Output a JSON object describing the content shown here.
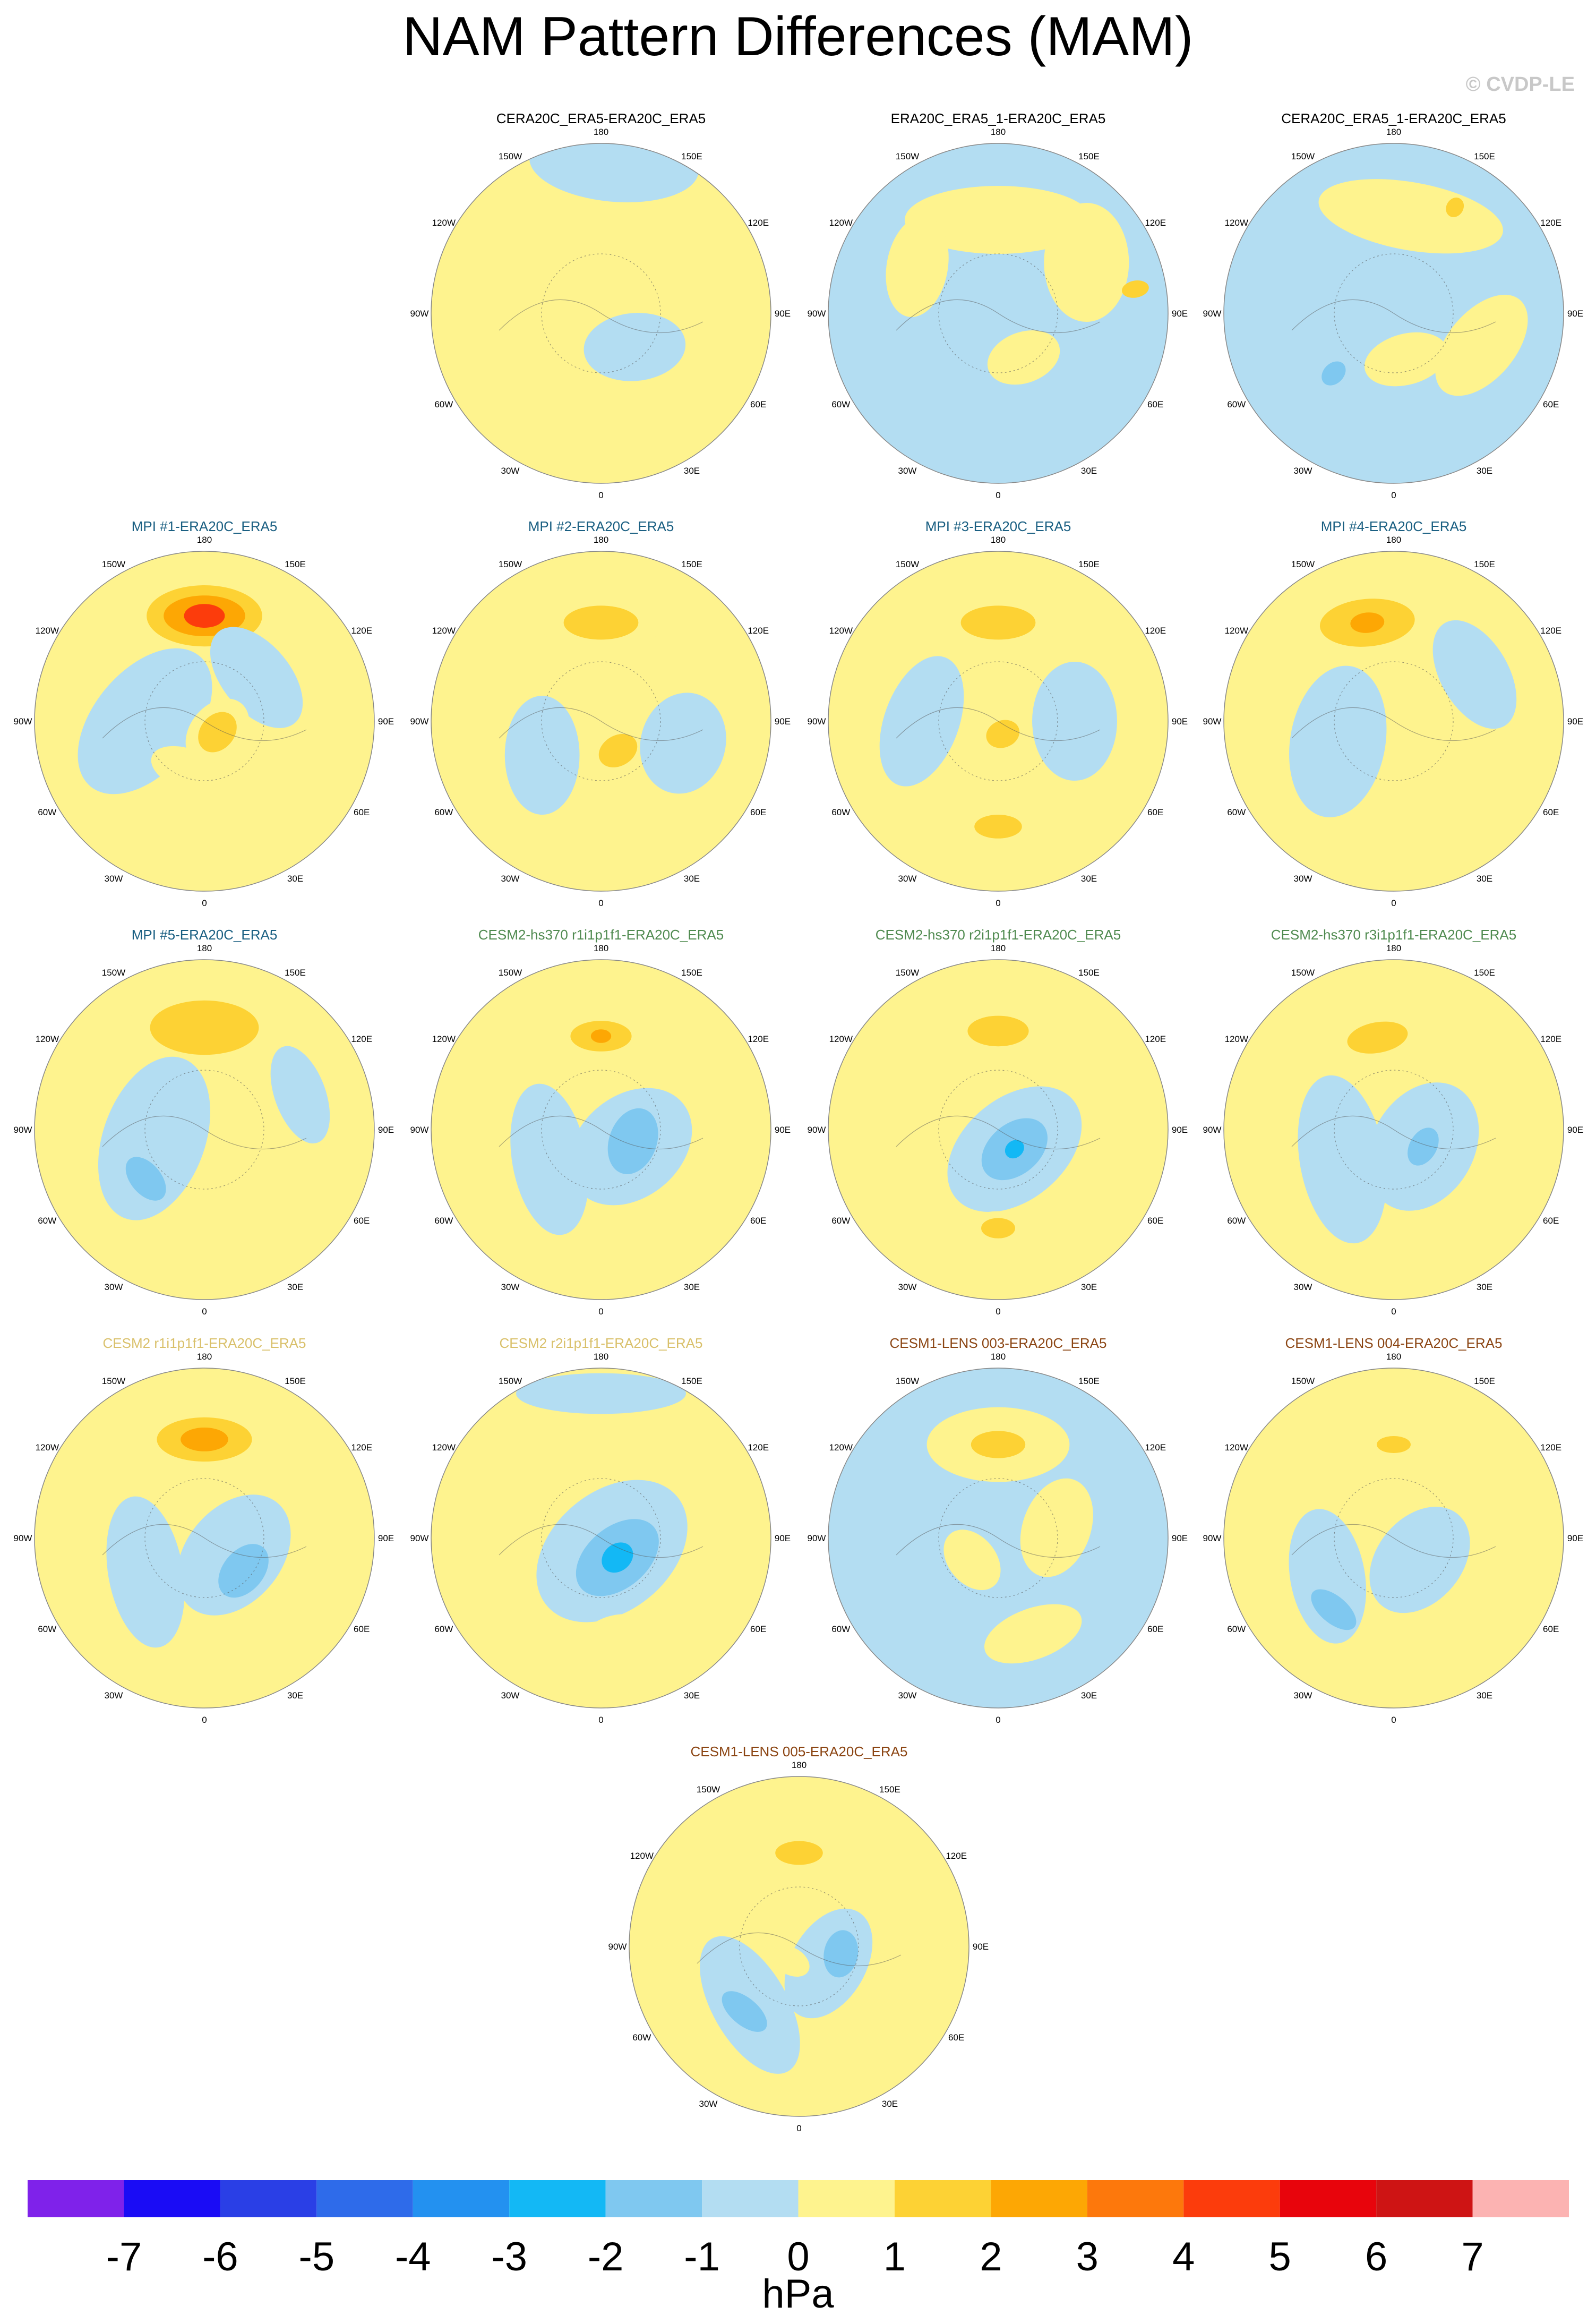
{
  "title": "NAM Pattern Differences (MAM)",
  "copyright": "© CVDP-LE",
  "chart_data": {
    "type": "heatmap",
    "description_type": "polar-stereographic contour maps",
    "units": "hPa",
    "colorbar": {
      "ticks": [
        "-7",
        "-6",
        "-5",
        "-4",
        "-3",
        "-2",
        "-1",
        "0",
        "1",
        "2",
        "3",
        "4",
        "5",
        "6",
        "7"
      ],
      "colors": [
        "#7f22ea",
        "#1a0cf5",
        "#2a3fe6",
        "#2e6bea",
        "#2391f0",
        "#13b8f5",
        "#7fc8f0",
        "#b3ddf2",
        "#fef38e",
        "#fdd234",
        "#fda704",
        "#fd780c",
        "#fc3c0c",
        "#e8040c",
        "#ce1414",
        "#fcb3b2"
      ],
      "unit_label": "hPa"
    },
    "longitude_labels": [
      "180",
      "150E",
      "120E",
      "90E",
      "60E",
      "30E",
      "0",
      "30W",
      "60W",
      "90W",
      "120W",
      "150W"
    ],
    "panels": [
      {
        "title": "CERA20C_ERA5-ERA20C_ERA5",
        "title_color": "#000000",
        "background": "#fef38e",
        "blobs": [
          {
            "lon": 175,
            "r": 0.88,
            "a": 0.5,
            "b": 0.22,
            "level": -1,
            "rot": 0
          },
          {
            "lon": 45,
            "r": 0.28,
            "a": 0.3,
            "b": 0.2,
            "level": -1,
            "rot": 40
          }
        ]
      },
      {
        "title": "ERA20C_ERA5_1-ERA20C_ERA5",
        "title_color": "#000000",
        "background": "#b3ddf2",
        "blobs": [
          {
            "lon": 180,
            "r": 0.55,
            "a": 0.55,
            "b": 0.2,
            "level": 1,
            "rot": 0
          },
          {
            "lon": 120,
            "r": 0.6,
            "a": 0.35,
            "b": 0.25,
            "level": 1,
            "rot": 30
          },
          {
            "lon": 240,
            "r": 0.55,
            "a": 0.3,
            "b": 0.18,
            "level": 1,
            "rot": -20
          },
          {
            "lon": 30,
            "r": 0.3,
            "a": 0.22,
            "b": 0.15,
            "level": 1,
            "rot": 10
          },
          {
            "lon": 100,
            "r": 0.82,
            "a": 0.05,
            "b": 0.08,
            "level": 2,
            "rot": 0
          }
        ]
      },
      {
        "title": "CERA20C_ERA5_1-ERA20C_ERA5",
        "title_color": "#000000",
        "background": "#b3ddf2",
        "blobs": [
          {
            "lon": 170,
            "r": 0.58,
            "a": 0.55,
            "b": 0.2,
            "level": 1,
            "rot": 0
          },
          {
            "lon": 70,
            "r": 0.55,
            "a": 0.35,
            "b": 0.2,
            "level": 1,
            "rot": 20
          },
          {
            "lon": 15,
            "r": 0.28,
            "a": 0.25,
            "b": 0.15,
            "level": 1,
            "rot": 0
          },
          {
            "lon": 150,
            "r": 0.72,
            "a": 0.05,
            "b": 0.06,
            "level": 2,
            "rot": 0
          },
          {
            "lon": 315,
            "r": 0.5,
            "a": 0.06,
            "b": 0.08,
            "level": -2,
            "rot": 0
          }
        ]
      },
      {
        "title": "MPI #1-ERA20C_ERA5",
        "title_color": "#1a5f82",
        "background": "#fef38e",
        "blobs": [
          {
            "lon": 180,
            "r": 0.62,
            "a": 0.45,
            "b": 0.25,
            "level": 1,
            "rot": 0
          },
          {
            "lon": 180,
            "r": 0.62,
            "a": 0.34,
            "b": 0.18,
            "level": 2,
            "rot": 0
          },
          {
            "lon": 180,
            "r": 0.62,
            "a": 0.24,
            "b": 0.12,
            "level": 3,
            "rot": 0
          },
          {
            "lon": 180,
            "r": 0.62,
            "a": 0.12,
            "b": 0.07,
            "level": 5,
            "rot": 0
          },
          {
            "lon": 270,
            "r": 0.35,
            "a": 0.5,
            "b": 0.3,
            "level": -1,
            "rot": 40
          },
          {
            "lon": 130,
            "r": 0.4,
            "a": 0.35,
            "b": 0.2,
            "level": -1,
            "rot": 0
          },
          {
            "lon": 50,
            "r": 0.1,
            "a": 0.22,
            "b": 0.16,
            "level": 1,
            "rot": 0
          },
          {
            "lon": 50,
            "r": 0.1,
            "a": 0.13,
            "b": 0.1,
            "level": 2,
            "rot": 0
          },
          {
            "lon": 340,
            "r": 0.3,
            "a": 0.22,
            "b": 0.12,
            "level": 1,
            "rot": 0
          }
        ]
      },
      {
        "title": "MPI #2-ERA20C_ERA5",
        "title_color": "#1a5f82",
        "background": "#fef38e",
        "blobs": [
          {
            "lon": 180,
            "r": 0.58,
            "a": 0.36,
            "b": 0.18,
            "level": 1,
            "rot": 0
          },
          {
            "lon": 180,
            "r": 0.58,
            "a": 0.22,
            "b": 0.1,
            "level": 2,
            "rot": 0
          },
          {
            "lon": 300,
            "r": 0.4,
            "a": 0.35,
            "b": 0.22,
            "level": -1,
            "rot": 30
          },
          {
            "lon": 75,
            "r": 0.5,
            "a": 0.3,
            "b": 0.25,
            "level": -1,
            "rot": 0
          },
          {
            "lon": 30,
            "r": 0.2,
            "a": 0.12,
            "b": 0.09,
            "level": 2,
            "rot": 0
          }
        ]
      },
      {
        "title": "MPI #3-ERA20C_ERA5",
        "title_color": "#1a5f82",
        "background": "#fef38e",
        "blobs": [
          {
            "lon": 180,
            "r": 0.58,
            "a": 0.36,
            "b": 0.18,
            "level": 1,
            "rot": 0
          },
          {
            "lon": 180,
            "r": 0.58,
            "a": 0.22,
            "b": 0.1,
            "level": 2,
            "rot": 0
          },
          {
            "lon": 90,
            "r": 0.45,
            "a": 0.35,
            "b": 0.25,
            "level": -1,
            "rot": 0
          },
          {
            "lon": 270,
            "r": 0.45,
            "a": 0.4,
            "b": 0.22,
            "level": -1,
            "rot": 20
          },
          {
            "lon": 20,
            "r": 0.08,
            "a": 0.18,
            "b": 0.14,
            "level": 1,
            "rot": 0
          },
          {
            "lon": 20,
            "r": 0.08,
            "a": 0.1,
            "b": 0.08,
            "level": 2,
            "rot": 0
          },
          {
            "lon": 0,
            "r": 0.62,
            "a": 0.24,
            "b": 0.12,
            "level": 1,
            "rot": 0
          },
          {
            "lon": 0,
            "r": 0.62,
            "a": 0.14,
            "b": 0.07,
            "level": 2,
            "rot": 0
          }
        ]
      },
      {
        "title": "MPI #4-ERA20C_ERA5",
        "title_color": "#1a5f82",
        "background": "#fef38e",
        "blobs": [
          {
            "lon": 195,
            "r": 0.6,
            "a": 0.4,
            "b": 0.22,
            "level": 1,
            "rot": 10
          },
          {
            "lon": 195,
            "r": 0.6,
            "a": 0.28,
            "b": 0.14,
            "level": 2,
            "rot": 10
          },
          {
            "lon": 195,
            "r": 0.6,
            "a": 0.1,
            "b": 0.06,
            "level": 3,
            "rot": 10
          },
          {
            "lon": 290,
            "r": 0.35,
            "a": 0.45,
            "b": 0.28,
            "level": -1,
            "rot": 30
          },
          {
            "lon": 120,
            "r": 0.55,
            "a": 0.35,
            "b": 0.2,
            "level": -1,
            "rot": 0
          },
          {
            "lon": 40,
            "r": 0.15,
            "a": 0.12,
            "b": 0.1,
            "level": 1,
            "rot": 0
          },
          {
            "lon": 350,
            "r": 0.55,
            "a": 0.12,
            "b": 0.07,
            "level": 1,
            "rot": 0
          }
        ]
      },
      {
        "title": "MPI #5-ERA20C_ERA5",
        "title_color": "#1a5f82",
        "background": "#fef38e",
        "blobs": [
          {
            "lon": 180,
            "r": 0.6,
            "a": 0.45,
            "b": 0.24,
            "level": 1,
            "rot": 0
          },
          {
            "lon": 180,
            "r": 0.6,
            "a": 0.32,
            "b": 0.16,
            "level": 2,
            "rot": 0
          },
          {
            "lon": 280,
            "r": 0.3,
            "a": 0.5,
            "b": 0.3,
            "level": -1,
            "rot": 30
          },
          {
            "lon": 310,
            "r": 0.45,
            "a": 0.15,
            "b": 0.09,
            "level": -2,
            "rot": 0
          },
          {
            "lon": 110,
            "r": 0.6,
            "a": 0.3,
            "b": 0.15,
            "level": -1,
            "rot": 0
          },
          {
            "lon": 20,
            "r": 0.35,
            "a": 0.12,
            "b": 0.1,
            "level": 1,
            "rot": 0
          }
        ]
      },
      {
        "title": "CESM2-hs370 r1i1p1f1-ERA20C_ERA5",
        "title_color": "#4f8a4f",
        "background": "#fef38e",
        "blobs": [
          {
            "lon": 180,
            "r": 0.55,
            "a": 0.3,
            "b": 0.16,
            "level": 1,
            "rot": 0
          },
          {
            "lon": 180,
            "r": 0.55,
            "a": 0.18,
            "b": 0.09,
            "level": 2,
            "rot": 0
          },
          {
            "lon": 180,
            "r": 0.55,
            "a": 0.06,
            "b": 0.04,
            "level": 3,
            "rot": 0
          },
          {
            "lon": 60,
            "r": 0.2,
            "a": 0.4,
            "b": 0.3,
            "level": -1,
            "rot": 20
          },
          {
            "lon": 70,
            "r": 0.2,
            "a": 0.2,
            "b": 0.14,
            "level": -2,
            "rot": 0
          },
          {
            "lon": 300,
            "r": 0.35,
            "a": 0.45,
            "b": 0.22,
            "level": -1,
            "rot": 20
          }
        ]
      },
      {
        "title": "CESM2-hs370 r2i1p1f1-ERA20C_ERA5",
        "title_color": "#4f8a4f",
        "background": "#fef38e",
        "blobs": [
          {
            "lon": 180,
            "r": 0.58,
            "a": 0.3,
            "b": 0.16,
            "level": 1,
            "rot": 0
          },
          {
            "lon": 180,
            "r": 0.58,
            "a": 0.18,
            "b": 0.09,
            "level": 2,
            "rot": 0
          },
          {
            "lon": 40,
            "r": 0.15,
            "a": 0.45,
            "b": 0.3,
            "level": -1,
            "rot": 0
          },
          {
            "lon": 40,
            "r": 0.15,
            "a": 0.22,
            "b": 0.15,
            "level": -2,
            "rot": 0
          },
          {
            "lon": 40,
            "r": 0.15,
            "a": 0.06,
            "b": 0.05,
            "level": -3,
            "rot": 0
          },
          {
            "lon": 0,
            "r": 0.58,
            "a": 0.2,
            "b": 0.1,
            "level": 1,
            "rot": 0
          },
          {
            "lon": 0,
            "r": 0.58,
            "a": 0.1,
            "b": 0.06,
            "level": 2,
            "rot": 0
          }
        ]
      },
      {
        "title": "CESM2-hs370 r3i1p1f1-ERA20C_ERA5",
        "title_color": "#4f8a4f",
        "background": "#fef38e",
        "blobs": [
          {
            "lon": 190,
            "r": 0.55,
            "a": 0.32,
            "b": 0.16,
            "level": 1,
            "rot": 0
          },
          {
            "lon": 190,
            "r": 0.55,
            "a": 0.18,
            "b": 0.09,
            "level": 2,
            "rot": 0
          },
          {
            "lon": 60,
            "r": 0.2,
            "a": 0.4,
            "b": 0.3,
            "level": -1,
            "rot": 0
          },
          {
            "lon": 60,
            "r": 0.2,
            "a": 0.12,
            "b": 0.08,
            "level": -2,
            "rot": 0
          },
          {
            "lon": 300,
            "r": 0.35,
            "a": 0.5,
            "b": 0.25,
            "level": -1,
            "rot": 20
          },
          {
            "lon": 30,
            "r": 0.6,
            "a": 0.06,
            "b": 0.05,
            "level": 1,
            "rot": 0
          }
        ]
      },
      {
        "title": "CESM2 r1i1p1f1-ERA20C_ERA5",
        "title_color": "#d9c06a",
        "background": "#fef38e",
        "blobs": [
          {
            "lon": 180,
            "r": 0.58,
            "a": 0.4,
            "b": 0.2,
            "level": 1,
            "rot": 0
          },
          {
            "lon": 180,
            "r": 0.58,
            "a": 0.28,
            "b": 0.13,
            "level": 2,
            "rot": 0
          },
          {
            "lon": 180,
            "r": 0.58,
            "a": 0.14,
            "b": 0.07,
            "level": 3,
            "rot": 0
          },
          {
            "lon": 60,
            "r": 0.2,
            "a": 0.4,
            "b": 0.28,
            "level": -1,
            "rot": 10
          },
          {
            "lon": 50,
            "r": 0.3,
            "a": 0.18,
            "b": 0.12,
            "level": -2,
            "rot": 0
          },
          {
            "lon": 300,
            "r": 0.4,
            "a": 0.45,
            "b": 0.22,
            "level": -1,
            "rot": 20
          }
        ]
      },
      {
        "title": "CESM2 r2i1p1f1-ERA20C_ERA5",
        "title_color": "#d9c06a",
        "background": "#fef38e",
        "blobs": [
          {
            "lon": 180,
            "r": 0.6,
            "a": 0.14,
            "b": 0.1,
            "level": 1,
            "rot": 0
          },
          {
            "lon": 40,
            "r": 0.1,
            "a": 0.5,
            "b": 0.35,
            "level": -1,
            "rot": 0
          },
          {
            "lon": 40,
            "r": 0.15,
            "a": 0.28,
            "b": 0.18,
            "level": -2,
            "rot": 0
          },
          {
            "lon": 40,
            "r": 0.15,
            "a": 0.1,
            "b": 0.08,
            "level": -3,
            "rot": 0
          },
          {
            "lon": 180,
            "r": 0.85,
            "a": 0.5,
            "b": 0.12,
            "level": -1,
            "rot": 0
          },
          {
            "lon": 10,
            "r": 0.55,
            "a": 0.18,
            "b": 0.09,
            "level": 1,
            "rot": 0
          }
        ]
      },
      {
        "title": "CESM1-LENS 003-ERA20C_ERA5",
        "title_color": "#8b4513",
        "background": "#b3ddf2",
        "blobs": [
          {
            "lon": 180,
            "r": 0.55,
            "a": 0.42,
            "b": 0.22,
            "level": 1,
            "rot": 0
          },
          {
            "lon": 180,
            "r": 0.55,
            "a": 0.16,
            "b": 0.08,
            "level": 2,
            "rot": 0
          },
          {
            "lon": 310,
            "r": 0.2,
            "a": 0.2,
            "b": 0.14,
            "level": 1,
            "rot": 0
          },
          {
            "lon": 100,
            "r": 0.35,
            "a": 0.3,
            "b": 0.2,
            "level": 1,
            "rot": 30
          },
          {
            "lon": 20,
            "r": 0.6,
            "a": 0.3,
            "b": 0.15,
            "level": 1,
            "rot": 0
          }
        ]
      },
      {
        "title": "CESM1-LENS 004-ERA20C_ERA5",
        "title_color": "#8b4513",
        "background": "#fef38e",
        "blobs": [
          {
            "lon": 180,
            "r": 0.55,
            "a": 0.3,
            "b": 0.16,
            "level": 1,
            "rot": 0
          },
          {
            "lon": 180,
            "r": 0.55,
            "a": 0.1,
            "b": 0.05,
            "level": 2,
            "rot": 0
          },
          {
            "lon": 50,
            "r": 0.2,
            "a": 0.35,
            "b": 0.25,
            "level": -1,
            "rot": 0
          },
          {
            "lon": 300,
            "r": 0.45,
            "a": 0.4,
            "b": 0.22,
            "level": -1,
            "rot": 20
          },
          {
            "lon": 320,
            "r": 0.55,
            "a": 0.16,
            "b": 0.08,
            "level": -2,
            "rot": 0
          }
        ]
      },
      {
        "title": "CESM1-LENS 005-ERA20C_ERA5",
        "title_color": "#8b4513",
        "background": "#fef38e",
        "blobs": [
          {
            "lon": 180,
            "r": 0.55,
            "a": 0.3,
            "b": 0.16,
            "level": 1,
            "rot": 0
          },
          {
            "lon": 180,
            "r": 0.55,
            "a": 0.14,
            "b": 0.07,
            "level": 2,
            "rot": 0
          },
          {
            "lon": 60,
            "r": 0.2,
            "a": 0.35,
            "b": 0.22,
            "level": -1,
            "rot": 0
          },
          {
            "lon": 80,
            "r": 0.25,
            "a": 0.14,
            "b": 0.1,
            "level": -2,
            "rot": 0
          },
          {
            "lon": 320,
            "r": 0.45,
            "a": 0.45,
            "b": 0.22,
            "level": -1,
            "rot": 20
          },
          {
            "lon": 320,
            "r": 0.5,
            "a": 0.16,
            "b": 0.08,
            "level": -2,
            "rot": 0
          },
          {
            "lon": 330,
            "r": 0.1,
            "a": 0.12,
            "b": 0.08,
            "level": 1,
            "rot": 0
          }
        ]
      }
    ]
  }
}
